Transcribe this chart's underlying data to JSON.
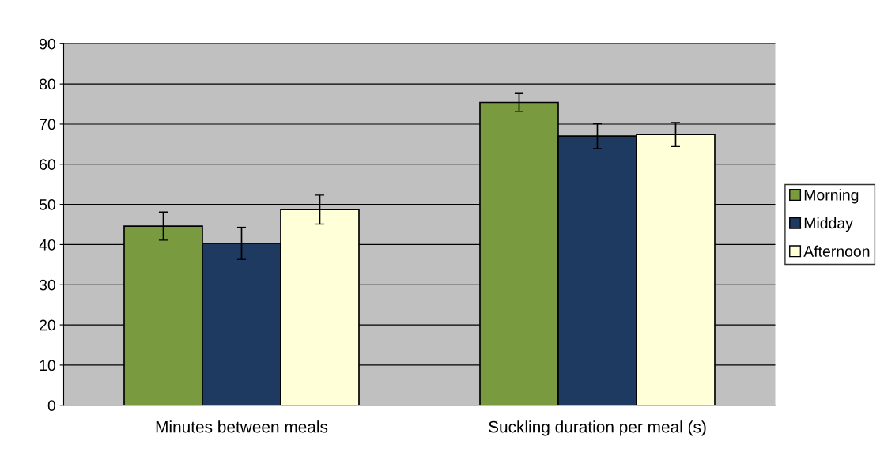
{
  "chart_data": {
    "type": "bar",
    "categories": [
      "Minutes between meals",
      "Suckling duration per meal (s)"
    ],
    "series": [
      {
        "name": "Morning",
        "color": "#7a9a3f",
        "values": [
          44.6,
          75.4
        ],
        "errors": [
          3.5,
          2.2
        ]
      },
      {
        "name": "Midday",
        "color": "#1f3a60",
        "values": [
          40.3,
          67.0
        ],
        "errors": [
          4.0,
          3.1
        ]
      },
      {
        "name": "Afternoon",
        "color": "#ffffd8",
        "values": [
          48.7,
          67.4
        ],
        "errors": [
          3.6,
          3.0
        ]
      }
    ],
    "ylim": [
      0,
      90
    ],
    "yticks": [
      0,
      10,
      20,
      30,
      40,
      50,
      60,
      70,
      80,
      90
    ],
    "grid": "y",
    "legend": "right"
  }
}
